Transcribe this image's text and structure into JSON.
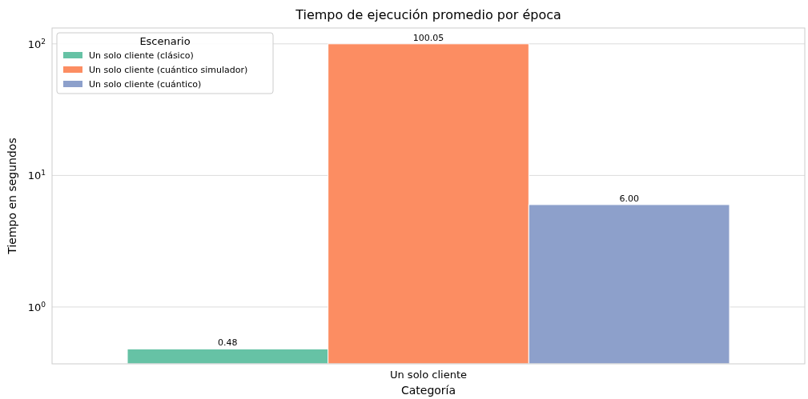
{
  "chart_data": {
    "type": "bar",
    "title": "Tiempo de ejecución promedio por época",
    "xlabel": "Categoría",
    "ylabel": "Tiempo en segundos",
    "legend_title": "Escenario",
    "categories": [
      "Un solo cliente"
    ],
    "series": [
      {
        "name": "Un solo cliente (clásico)",
        "color": "#66c2a5",
        "values": [
          0.48
        ],
        "value_labels": [
          "0.48"
        ]
      },
      {
        "name": "Un solo cliente (cuántico simulador)",
        "color": "#fc8d62",
        "values": [
          100.05
        ],
        "value_labels": [
          "100.05"
        ]
      },
      {
        "name": "Un solo cliente (cuántico)",
        "color": "#8da0cb",
        "values": [
          6.0
        ],
        "value_labels": [
          "6.00"
        ]
      }
    ],
    "log": true,
    "ylim": [
      0.37,
      132
    ],
    "yticks": [
      {
        "value": 1,
        "label": "10$^{0}$"
      },
      {
        "value": 10,
        "label": "10$^{1}$"
      },
      {
        "value": 100,
        "label": "10$^{2}$"
      }
    ],
    "grid": "y",
    "legend": "top left"
  }
}
